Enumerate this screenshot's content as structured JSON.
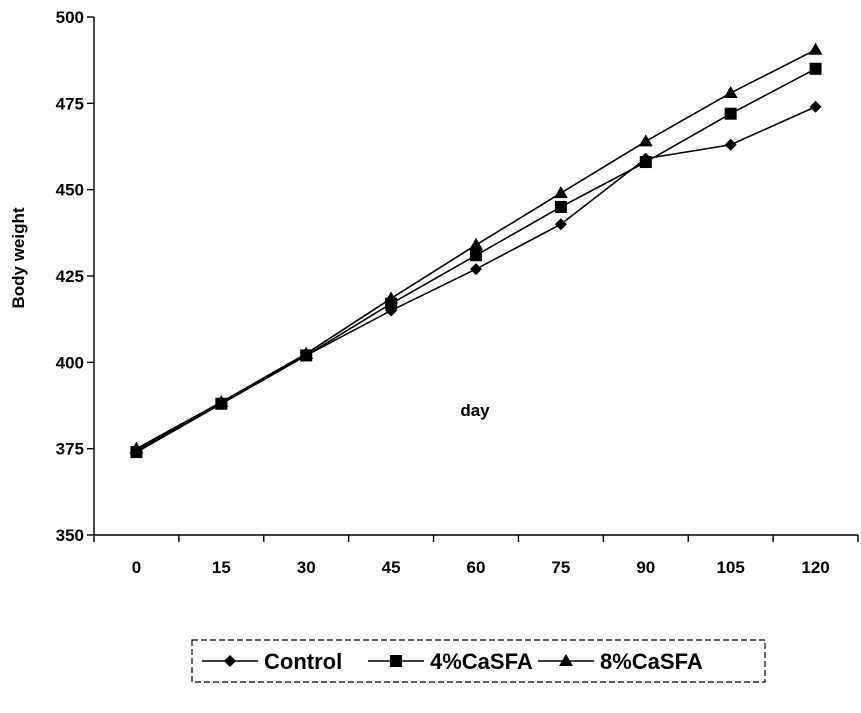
{
  "chart_data": {
    "type": "line",
    "title": "",
    "xlabel": "day",
    "ylabel": "Body weight",
    "x": [
      0,
      15,
      30,
      45,
      60,
      75,
      90,
      105,
      120
    ],
    "x_tick_labels": [
      "0",
      "15",
      "30",
      "45",
      "60",
      "75",
      "90",
      "105",
      "120"
    ],
    "y_tick_labels": [
      "350",
      "375",
      "400",
      "425",
      "450",
      "475",
      "500"
    ],
    "ylim": [
      350,
      500
    ],
    "y_ticks": [
      350,
      375,
      400,
      425,
      450,
      475,
      500
    ],
    "grid": false,
    "legend_position": "bottom",
    "series": [
      {
        "name": "Control",
        "marker": "diamond",
        "color": "#000000",
        "values": [
          374.5,
          388,
          402,
          415,
          427,
          440,
          459,
          463,
          474
        ]
      },
      {
        "name": "4%CaSFA",
        "marker": "square",
        "color": "#000000",
        "values": [
          374,
          388,
          402,
          417,
          431,
          445,
          458,
          472,
          485
        ]
      },
      {
        "name": "8%CaSFA",
        "marker": "triangle",
        "color": "#000000",
        "values": [
          375,
          388.5,
          402.5,
          418.5,
          434,
          449,
          464,
          478,
          490.5
        ]
      }
    ]
  }
}
